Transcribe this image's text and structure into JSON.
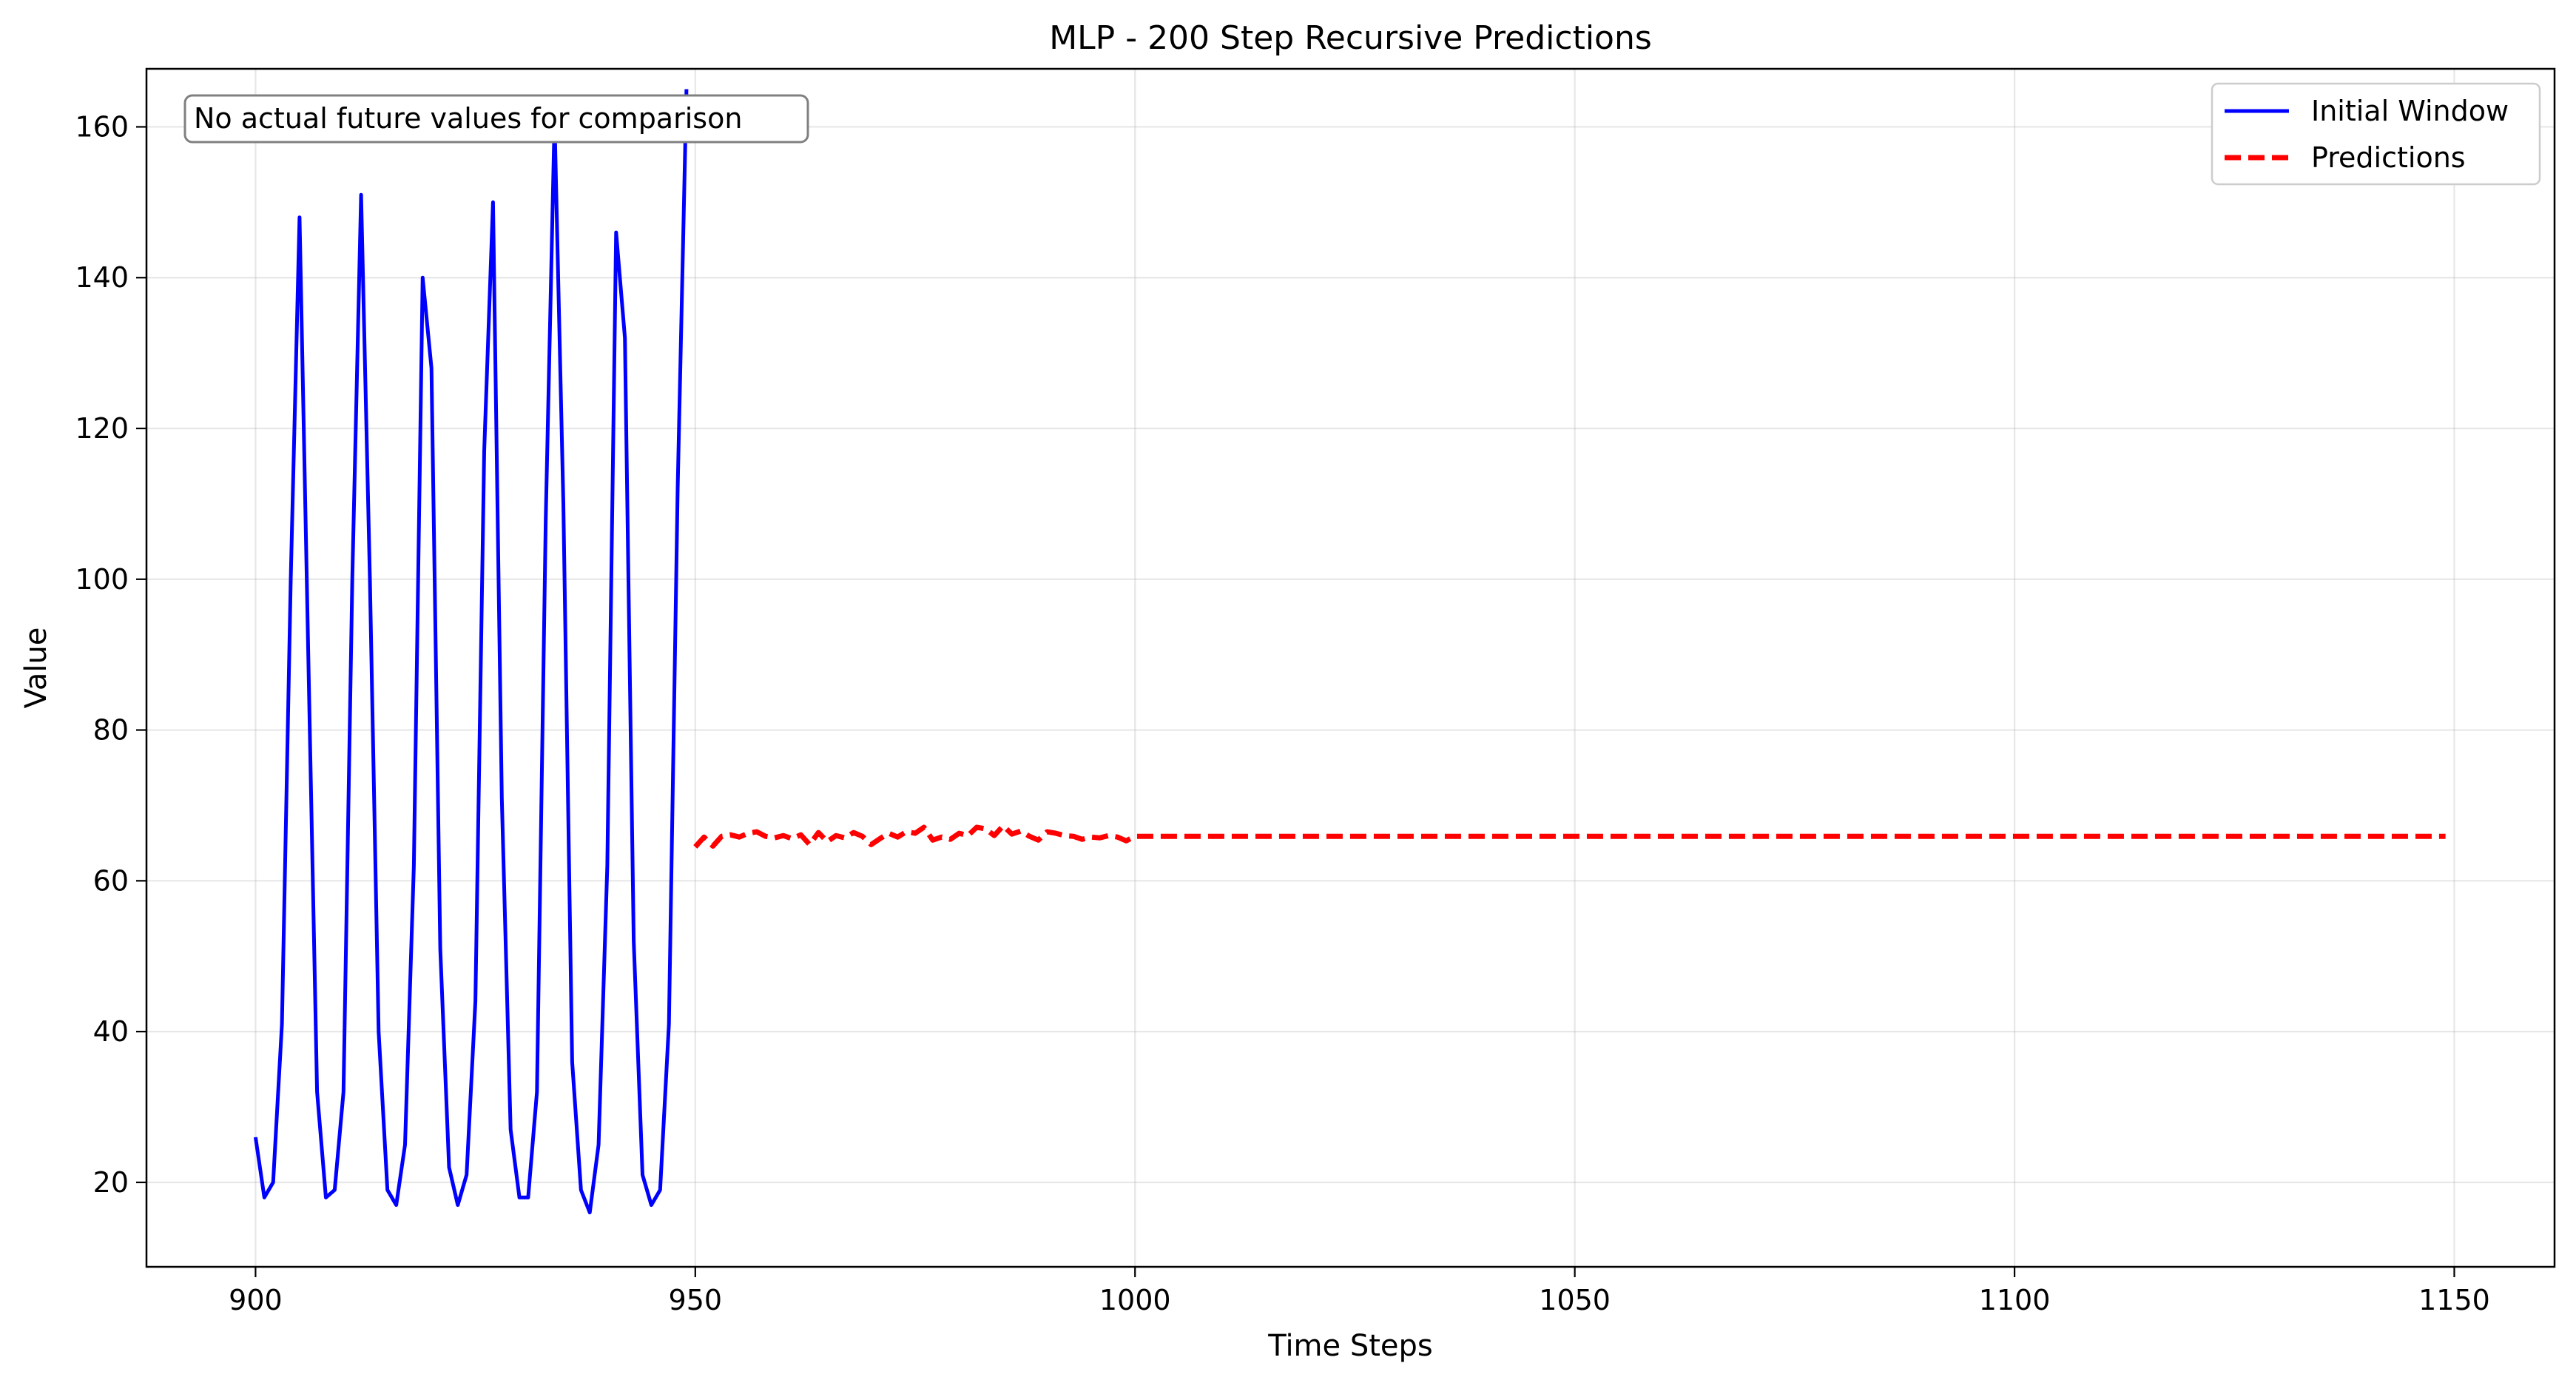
{
  "chart_data": {
    "type": "line",
    "title": "MLP - 200 Step Recursive Predictions",
    "xlabel": "Time Steps",
    "ylabel": "Value",
    "xlim": [
      887.6,
      1161.4
    ],
    "ylim": [
      8.8,
      167.7
    ],
    "xticks": [
      900,
      950,
      1000,
      1050,
      1100,
      1150
    ],
    "yticks": [
      20,
      40,
      60,
      80,
      100,
      120,
      140,
      160
    ],
    "grid": true,
    "legend_position": "top-right",
    "annotation": "No actual future values for comparison",
    "series": [
      {
        "name": "Initial Window",
        "color": "#0000ff",
        "style": "solid",
        "x": [
          900,
          901,
          902,
          903,
          904,
          905,
          906,
          907,
          908,
          909,
          910,
          911,
          912,
          913,
          914,
          915,
          916,
          917,
          918,
          919,
          920,
          921,
          922,
          923,
          924,
          925,
          926,
          927,
          928,
          929,
          930,
          931,
          932,
          933,
          934,
          935,
          936,
          937,
          938,
          939,
          940,
          941,
          942,
          943,
          944,
          945,
          946,
          947,
          948,
          949
        ],
        "y": [
          26,
          18,
          20,
          41,
          100,
          148,
          90,
          32,
          18,
          19,
          32,
          100,
          151,
          100,
          40,
          19,
          17,
          25,
          62,
          140,
          128,
          51,
          22,
          17,
          21,
          44,
          117,
          150,
          71,
          27,
          18,
          18,
          32,
          108,
          161,
          110,
          36,
          19,
          16,
          25,
          62,
          146,
          132,
          52,
          21,
          17,
          19,
          41,
          112,
          165
        ]
      },
      {
        "name": "Predictions",
        "color": "#ff0000",
        "style": "dashed",
        "x": [
          950,
          951,
          952,
          953,
          954,
          955,
          956,
          957,
          958,
          959,
          960,
          961,
          962,
          963,
          964,
          965,
          966,
          967,
          968,
          969,
          970,
          971,
          972,
          973,
          974,
          975,
          976,
          977,
          978,
          979,
          980,
          981,
          982,
          983,
          984,
          985,
          986,
          987,
          988,
          989,
          990,
          991,
          992,
          993,
          994,
          995,
          996,
          997,
          998,
          999,
          1000,
          1010,
          1020,
          1030,
          1040,
          1050,
          1060,
          1070,
          1080,
          1090,
          1100,
          1110,
          1120,
          1130,
          1140,
          1149
        ],
        "y": [
          64.5,
          65.8,
          64.6,
          65.9,
          66.1,
          65.8,
          66.3,
          66.5,
          65.9,
          65.7,
          66.0,
          65.6,
          66.1,
          64.8,
          66.4,
          65.2,
          66.0,
          65.7,
          66.4,
          65.9,
          64.8,
          65.6,
          66.3,
          65.8,
          66.5,
          66.3,
          67.1,
          65.4,
          65.8,
          65.5,
          66.3,
          66.0,
          67.1,
          66.9,
          66.0,
          67.3,
          66.2,
          66.6,
          65.9,
          65.4,
          66.5,
          66.3,
          66.0,
          65.9,
          65.5,
          65.8,
          65.7,
          66.0,
          65.8,
          65.3,
          65.9,
          65.9,
          65.9,
          65.9,
          65.9,
          65.9,
          65.9,
          65.9,
          65.9,
          65.9,
          65.9,
          65.9,
          65.9,
          65.9,
          65.9,
          65.9
        ]
      }
    ]
  }
}
